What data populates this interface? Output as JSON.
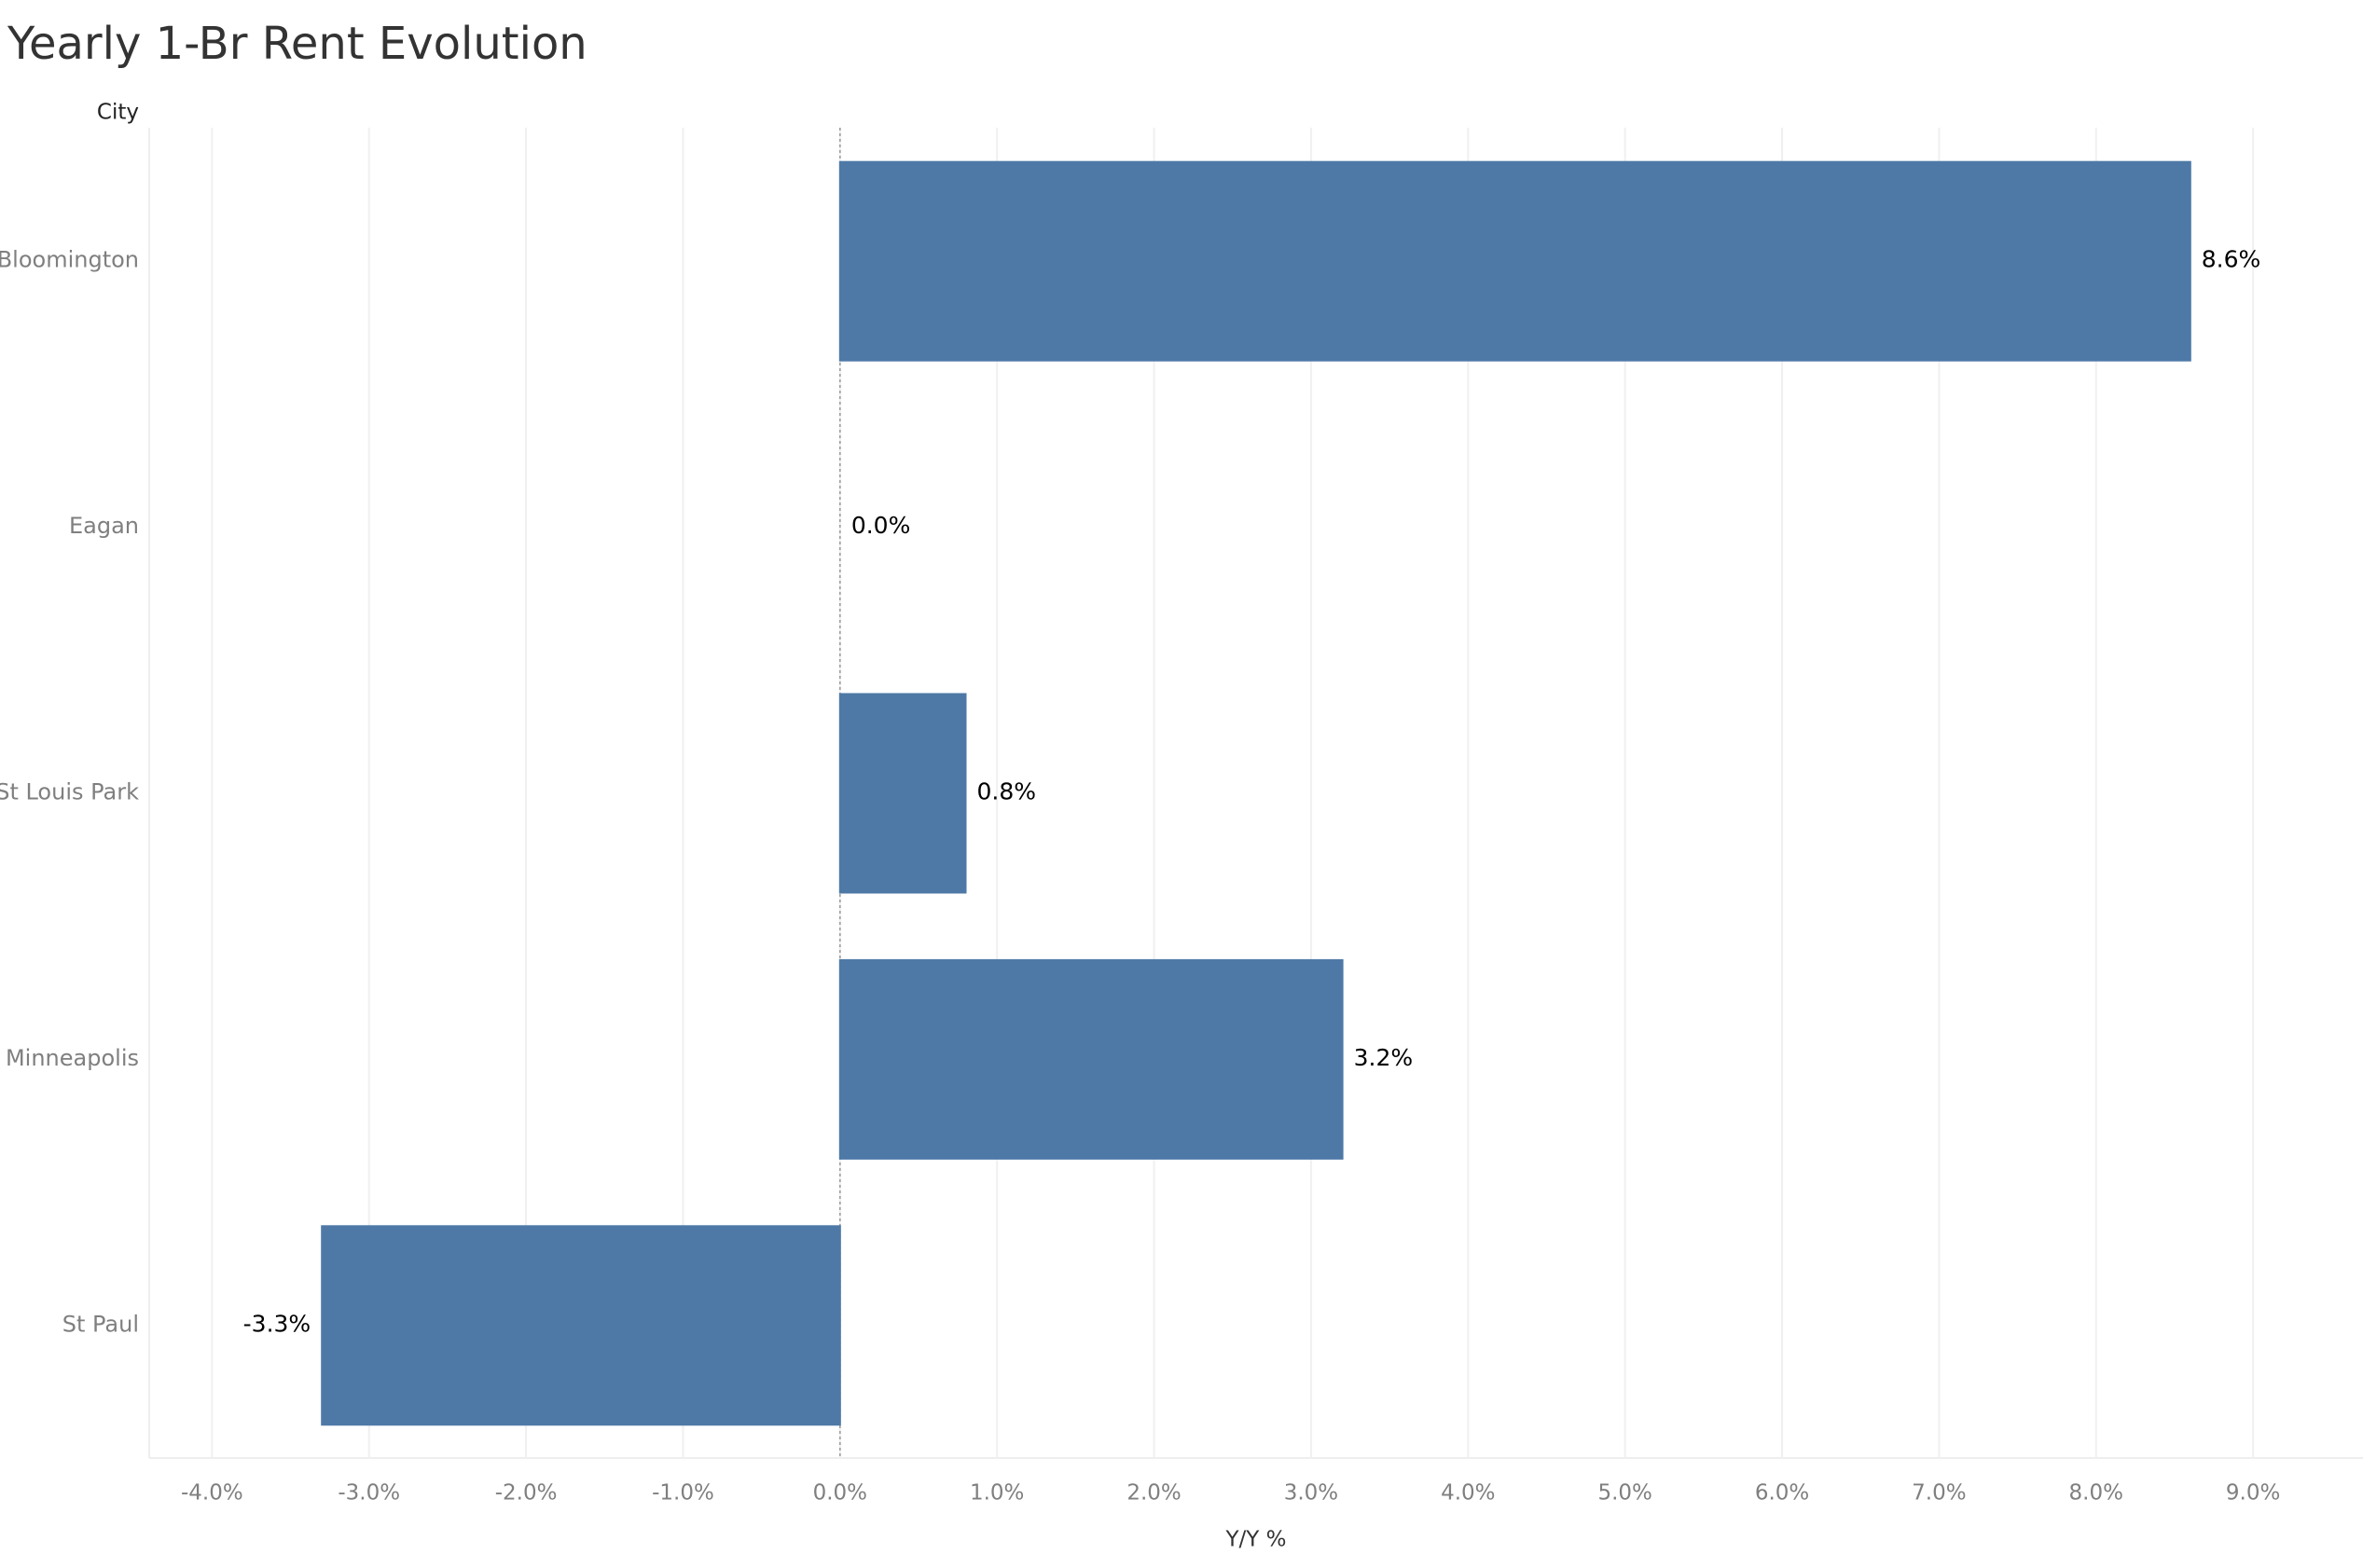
{
  "chart_data": {
    "type": "bar",
    "orientation": "horizontal",
    "title": "Yearly 1-Br Rent Evolution",
    "y_axis_label": "City",
    "x_axis_label": "Y/Y %",
    "categories": [
      "Bloomington",
      "Eagan",
      "St Louis Park",
      "Minneapolis",
      "St Paul"
    ],
    "values": [
      8.6,
      0.0,
      0.8,
      3.2,
      -3.3
    ],
    "value_labels": [
      "8.6%",
      "0.0%",
      "0.8%",
      "3.2%",
      "-3.3%"
    ],
    "color": "#4e79a7",
    "xlim": [
      -4.4,
      9.7
    ],
    "xticks": [
      {
        "value": -4,
        "label": "-4.0%"
      },
      {
        "value": -3,
        "label": "-3.0%"
      },
      {
        "value": -2,
        "label": "-2.0%"
      },
      {
        "value": -1,
        "label": "-1.0%"
      },
      {
        "value": 0,
        "label": "0.0%"
      },
      {
        "value": 1,
        "label": "1.0%"
      },
      {
        "value": 2,
        "label": "2.0%"
      },
      {
        "value": 3,
        "label": "3.0%"
      },
      {
        "value": 4,
        "label": "4.0%"
      },
      {
        "value": 5,
        "label": "5.0%"
      },
      {
        "value": 6,
        "label": "6.0%"
      },
      {
        "value": 7,
        "label": "7.0%"
      },
      {
        "value": 8,
        "label": "8.0%"
      },
      {
        "value": 9,
        "label": "9.0%"
      }
    ],
    "grid": true
  }
}
